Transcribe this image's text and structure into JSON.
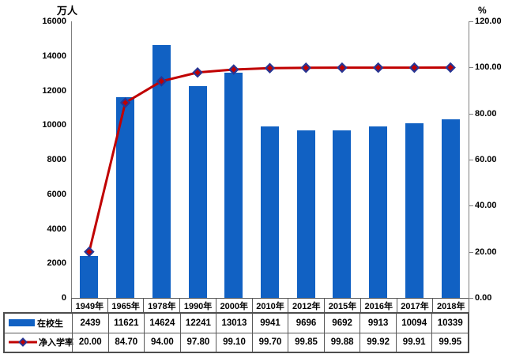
{
  "chart_data": {
    "type": "bar",
    "subtype": "combo-bar-line-with-data-table",
    "categories": [
      "1949年",
      "1965年",
      "1978年",
      "1990年",
      "2000年",
      "2010年",
      "2012年",
      "2015年",
      "2016年",
      "2017年",
      "2018年"
    ],
    "series": [
      {
        "name": "在校生",
        "chart": "bar",
        "axis": "left",
        "color": "#1161C3",
        "values": [
          2439,
          11621,
          14624,
          12241,
          13013,
          9941,
          9696,
          9692,
          9913,
          10094,
          10339
        ],
        "labels": [
          "2439",
          "11621",
          "14624",
          "12241",
          "13013",
          "9941",
          "9696",
          "9692",
          "9913",
          "10094",
          "10339"
        ]
      },
      {
        "name": "净入学率",
        "chart": "line",
        "axis": "right",
        "color": "#C00000",
        "marker": "diamond",
        "marker_border_color": "#283593",
        "values": [
          20.0,
          84.7,
          94.0,
          97.8,
          99.1,
          99.7,
          99.85,
          99.88,
          99.92,
          99.91,
          99.95
        ],
        "labels": [
          "20.00",
          "84.70",
          "94.00",
          "97.80",
          "99.10",
          "99.70",
          "99.85",
          "99.88",
          "99.92",
          "99.91",
          "99.95"
        ]
      }
    ],
    "left_axis": {
      "title": "万人",
      "min": 0,
      "max": 16000,
      "step": 2000,
      "ticks": [
        "0",
        "2000",
        "4000",
        "6000",
        "8000",
        "10000",
        "12000",
        "14000",
        "16000"
      ]
    },
    "right_axis": {
      "title": "%",
      "min": 0,
      "max": 120,
      "step": 20,
      "ticks": [
        "0.00",
        "20.00",
        "40.00",
        "60.00",
        "80.00",
        "100.00",
        "120.00"
      ]
    },
    "grid": false,
    "legend_position": "data-table-left",
    "data_table_shown": true,
    "plot_background": "#ffffff"
  }
}
